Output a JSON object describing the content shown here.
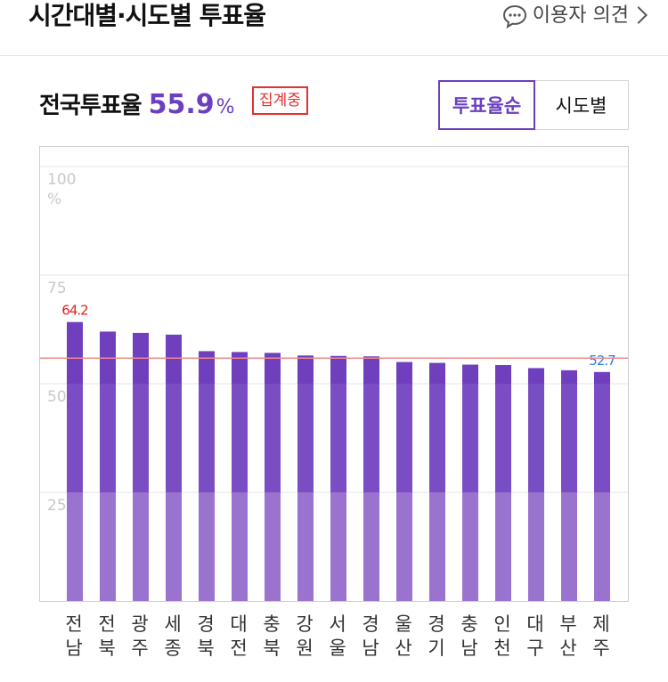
{
  "header": {
    "title": "시간대별·시도별 투표율",
    "opinion_label": "이용자 의견"
  },
  "summary": {
    "label": "전국투표율",
    "rate": "55.9",
    "unit": "%",
    "badge": "집계중"
  },
  "tabs": [
    {
      "label": "투표율순",
      "active": true
    },
    {
      "label": "시도별",
      "active": false
    }
  ],
  "colors": {
    "accent": "#6a3fc0",
    "bar_dark": "#7a4dc4",
    "bar_light": "#9a73cf",
    "max": "#e02020",
    "min": "#2a7de1",
    "avg_line": "#f08a8a"
  },
  "icons": {
    "opinion": "speech-bubble-icon",
    "chevron": "chevron-right-icon"
  },
  "chart_data": {
    "type": "bar",
    "categories": [
      "전남",
      "전북",
      "광주",
      "세종",
      "경북",
      "대전",
      "충북",
      "강원",
      "서울",
      "경남",
      "울산",
      "경기",
      "충남",
      "인천",
      "대구",
      "부산",
      "제주"
    ],
    "category_lines": [
      [
        "전",
        "남"
      ],
      [
        "전",
        "북"
      ],
      [
        "광",
        "주"
      ],
      [
        "세",
        "종"
      ],
      [
        "경",
        "북"
      ],
      [
        "대",
        "전"
      ],
      [
        "충",
        "북"
      ],
      [
        "강",
        "원"
      ],
      [
        "서",
        "울"
      ],
      [
        "경",
        "남"
      ],
      [
        "울",
        "산"
      ],
      [
        "경",
        "기"
      ],
      [
        "충",
        "남"
      ],
      [
        "인",
        "천"
      ],
      [
        "대",
        "구"
      ],
      [
        "부",
        "산"
      ],
      [
        "제",
        "주"
      ]
    ],
    "values": [
      64.2,
      62.0,
      61.7,
      61.3,
      57.5,
      57.3,
      57.1,
      56.5,
      56.4,
      56.3,
      55.0,
      54.8,
      54.4,
      54.3,
      53.6,
      53.1,
      52.7
    ],
    "value_labels": {
      "max": "64.2",
      "min": "52.7"
    },
    "reference_line": 55.9,
    "yticks": [
      "25",
      "50",
      "75",
      "100 %"
    ],
    "ylim": [
      0,
      100
    ],
    "grid": true
  }
}
